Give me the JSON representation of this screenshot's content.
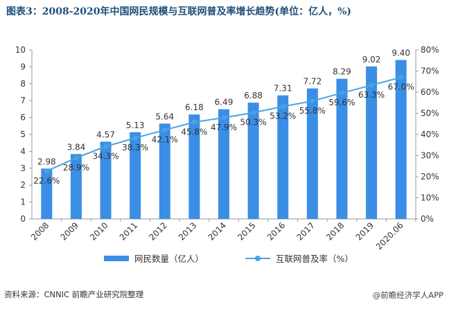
{
  "title": "图表3：2008-2020年中国网民规模与互联网普及率增长趋势(单位：亿人，%)",
  "source": "资料来源：CNNIC 前瞻产业研究院整理",
  "brand": "@前瞻经济学人APP",
  "colors": {
    "bar": "#3a8ee6",
    "line": "#4aa3df",
    "title": "#1f4e79"
  },
  "chart_data": {
    "type": "bar",
    "categories": [
      "2008",
      "2009",
      "2010",
      "2011",
      "2012",
      "2013",
      "2014",
      "2015",
      "2016",
      "2017",
      "2018",
      "2019",
      "2020.06"
    ],
    "series": [
      {
        "name": "网民数量（亿人）",
        "type": "bar",
        "axis": "left",
        "values": [
          2.98,
          3.84,
          4.57,
          5.13,
          5.64,
          6.18,
          6.49,
          6.88,
          7.31,
          7.72,
          8.29,
          9.02,
          9.4
        ],
        "labels": [
          "2.98",
          "3.84",
          "4.57",
          "5.13",
          "5.64",
          "6.18",
          "6.49",
          "6.88",
          "7.31",
          "7.72",
          "8.29",
          "9.02",
          "9.40"
        ]
      },
      {
        "name": "互联网普及率（%）",
        "type": "line",
        "axis": "right",
        "values": [
          22.6,
          28.9,
          34.3,
          38.3,
          42.1,
          45.8,
          47.9,
          50.3,
          53.2,
          55.8,
          59.6,
          63.3,
          67.0
        ],
        "labels": [
          "22.6%",
          "28.9%",
          "34.3%",
          "38.3%",
          "42.1%",
          "45.8%",
          "47.9%",
          "50.3%",
          "53.2%",
          "55.8%",
          "59.6%",
          "63.3%",
          "67.0%"
        ]
      }
    ],
    "ylim": [
      0,
      10
    ],
    "yticks": [
      "0",
      "1",
      "2",
      "3",
      "4",
      "5",
      "6",
      "7",
      "8",
      "9",
      "10"
    ],
    "y2lim": [
      0,
      80
    ],
    "y2ticks": [
      "0%",
      "10%",
      "20%",
      "30%",
      "40%",
      "50%",
      "60%",
      "70%",
      "80%"
    ],
    "legend_position": "bottom",
    "grid": false
  }
}
